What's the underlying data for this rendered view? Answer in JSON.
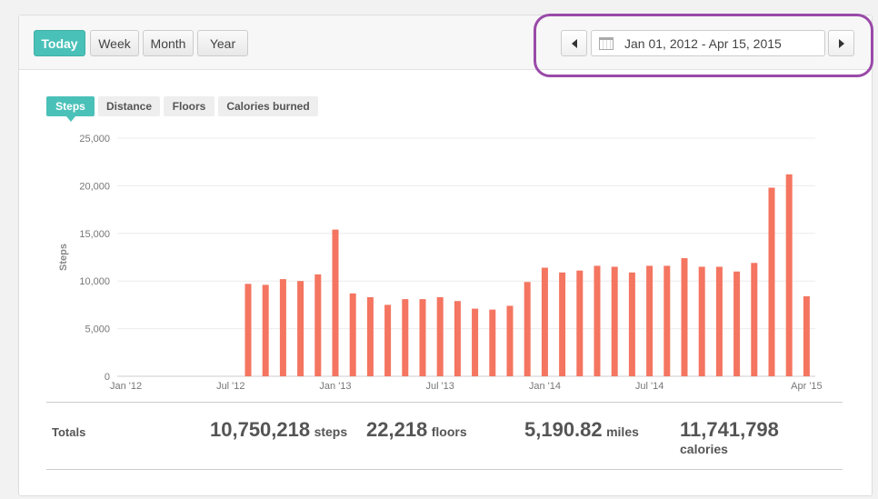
{
  "header": {
    "periods": [
      "Today",
      "Week",
      "Month",
      "Year"
    ],
    "active_period": "Today",
    "date_range": "Jan 01, 2012 - Apr 15, 2015"
  },
  "metric_tabs": [
    "Steps",
    "Distance",
    "Floors",
    "Calories burned"
  ],
  "active_metric": "Steps",
  "colors": {
    "accent": "#4ac1b8",
    "bar": "#f47560",
    "highlight": "#9a4aa8"
  },
  "chart_data": {
    "type": "bar",
    "title": "",
    "ylabel": "Steps",
    "ylim": [
      0,
      25000
    ],
    "y_ticks": [
      0,
      5000,
      10000,
      15000,
      20000,
      25000
    ],
    "y_tick_labels": [
      "0",
      "5,000",
      "10,000",
      "15,000",
      "20,000",
      "25,000"
    ],
    "x_ticks": [
      {
        "month": "2012-01",
        "label": "Jan '12"
      },
      {
        "month": "2012-07",
        "label": "Jul '12"
      },
      {
        "month": "2013-01",
        "label": "Jan '13"
      },
      {
        "month": "2013-07",
        "label": "Jul '13"
      },
      {
        "month": "2014-01",
        "label": "Jan '14"
      },
      {
        "month": "2014-07",
        "label": "Jul '14"
      },
      {
        "month": "2015-04",
        "label": "Apr '15"
      }
    ],
    "categories": [
      "2012-01",
      "2012-02",
      "2012-03",
      "2012-04",
      "2012-05",
      "2012-06",
      "2012-07",
      "2012-08",
      "2012-09",
      "2012-10",
      "2012-11",
      "2012-12",
      "2013-01",
      "2013-02",
      "2013-03",
      "2013-04",
      "2013-05",
      "2013-06",
      "2013-07",
      "2013-08",
      "2013-09",
      "2013-10",
      "2013-11",
      "2013-12",
      "2014-01",
      "2014-02",
      "2014-03",
      "2014-04",
      "2014-05",
      "2014-06",
      "2014-07",
      "2014-08",
      "2014-09",
      "2014-10",
      "2014-11",
      "2014-12",
      "2015-01",
      "2015-02",
      "2015-03",
      "2015-04"
    ],
    "values": [
      0,
      0,
      0,
      0,
      0,
      0,
      0,
      9700,
      9600,
      10200,
      10000,
      10700,
      15400,
      8700,
      8300,
      7500,
      8100,
      8100,
      8300,
      7900,
      7100,
      7000,
      7400,
      9900,
      11400,
      10900,
      11100,
      11600,
      11500,
      10900,
      11600,
      11600,
      12400,
      11500,
      11500,
      11000,
      11900,
      19800,
      21200,
      8400
    ],
    "grid": true
  },
  "totals": {
    "label": "Totals",
    "steps_value": "10,750,218",
    "steps_unit": "steps",
    "floors_value": "22,218",
    "floors_unit": "floors",
    "miles_value": "5,190.82",
    "miles_unit": "miles",
    "calories_value": "11,741,798",
    "calories_unit": "calories"
  }
}
